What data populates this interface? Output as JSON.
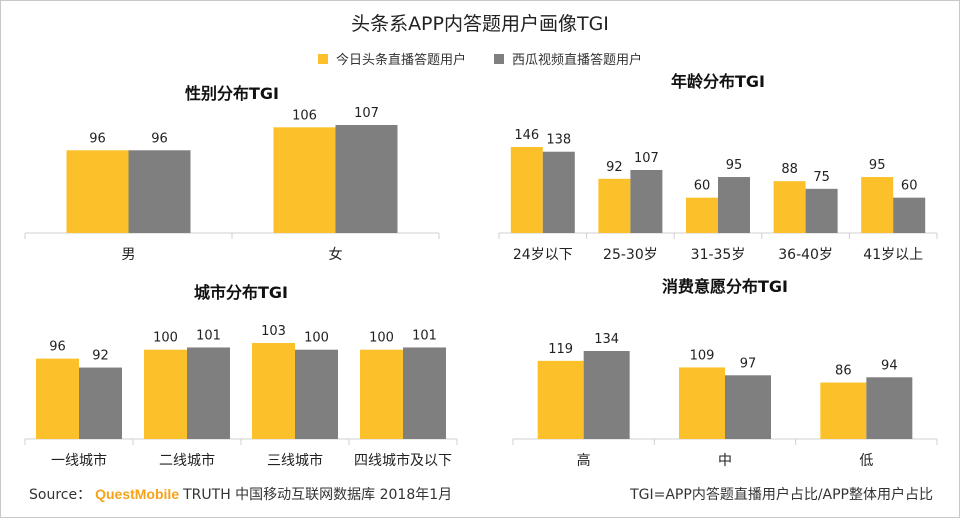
{
  "header": {
    "title": "头条系APP内答题用户画像TGI"
  },
  "legend": [
    {
      "label": "今日头条直播答题用户",
      "color": "#FCC12A"
    },
    {
      "label": "西瓜视频直播答题用户",
      "color": "#7F7F7F"
    }
  ],
  "footer": {
    "source_label": "Source：",
    "brand": "QuestMobile",
    "brand_color": "#F7A21B",
    "source_rest": "TRUTH 中国移动互联网数据库 2018年1月",
    "note": "TGI=APP内答题直播用户占比/APP整体用户占比"
  },
  "chart_data": [
    {
      "type": "bar",
      "title": "性别分布TGI",
      "categories": [
        "男",
        "女"
      ],
      "series": [
        {
          "name": "今日头条直播答题用户",
          "values": [
            96,
            106
          ]
        },
        {
          "name": "西瓜视频直播答题用户",
          "values": [
            96,
            107
          ]
        }
      ],
      "ylim": [
        60,
        107
      ]
    },
    {
      "type": "bar",
      "title": "年龄分布TGI",
      "categories": [
        "24岁以下",
        "25-30岁",
        "31-35岁",
        "36-40岁",
        "41岁以上"
      ],
      "series": [
        {
          "name": "今日头条直播答题用户",
          "values": [
            146,
            92,
            60,
            88,
            95
          ]
        },
        {
          "name": "西瓜视频直播答题用户",
          "values": [
            138,
            107,
            95,
            75,
            60
          ]
        }
      ],
      "ylim": [
        0,
        146
      ]
    },
    {
      "type": "bar",
      "title": "城市分布TGI",
      "categories": [
        "一线城市",
        "二线城市",
        "三线城市",
        "四线城市及以下"
      ],
      "series": [
        {
          "name": "今日头条直播答题用户",
          "values": [
            96,
            100,
            103,
            100
          ]
        },
        {
          "name": "西瓜视频直播答题用户",
          "values": [
            92,
            101,
            100,
            101
          ]
        }
      ],
      "ylim": [
        60,
        103
      ]
    },
    {
      "type": "bar",
      "title": "消费意愿分布TGI",
      "categories": [
        "高",
        "中",
        "低"
      ],
      "series": [
        {
          "name": "今日头条直播答题用户",
          "values": [
            119,
            109,
            86
          ]
        },
        {
          "name": "西瓜视频直播答题用户",
          "values": [
            134,
            97,
            94
          ]
        }
      ],
      "ylim": [
        0,
        134
      ]
    }
  ]
}
